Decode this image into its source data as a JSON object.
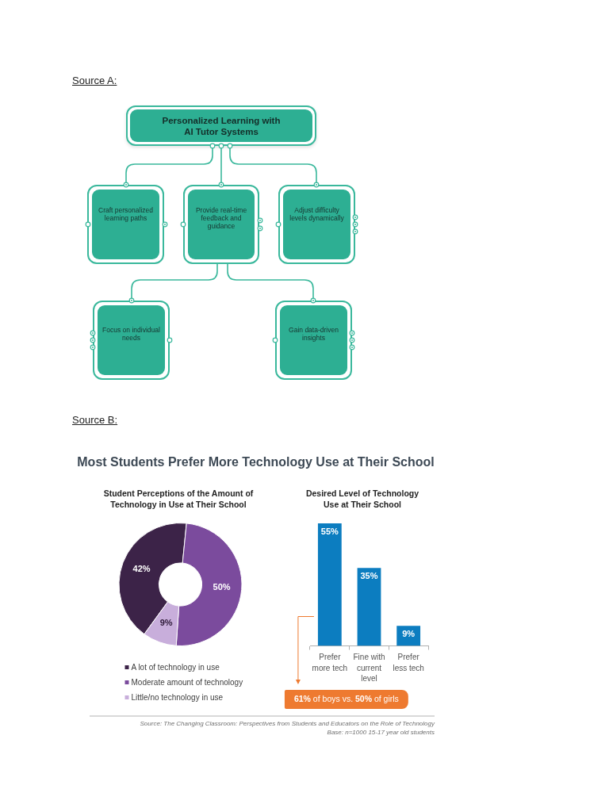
{
  "chart_data": [
    {
      "type": "other",
      "title": "Personalized Learning with AI Tutor Systems",
      "annotations": [
        "Source A:",
        "Craft personalized learning paths",
        "Provide real-time feedback and guidance",
        "Adjust difficulty levels dynamically",
        "Focus on individual needs",
        "Gain data-driven insights"
      ]
    },
    {
      "type": "other",
      "title": "Most Students Prefer More Technology Use at Their School",
      "annotations": [
        "Source B:",
        "Source: The Changing Classroom: Perspectives from Students and Educators on the Role of Technology",
        "Base: n=1000 15-17 year old students"
      ]
    },
    {
      "type": "donut",
      "title": "Student Perceptions of the Amount of Technology in Use at Their School",
      "categories": [
        "A lot of technology in use",
        "Moderate amount of technology",
        "Little/no technology in use"
      ],
      "values": [
        42,
        50,
        9
      ],
      "colors": [
        "#3c2348",
        "#7b4b9d",
        "#c8aedb"
      ],
      "value_labels": [
        "42%",
        "50%",
        "9%"
      ],
      "legend": "bottom"
    },
    {
      "type": "bar",
      "title": "Desired Level of Technology Use at Their School",
      "categories": [
        "Prefer more tech",
        "Fine with current level",
        "Prefer less tech"
      ],
      "values": [
        55,
        35,
        9
      ],
      "color": "#0c7dc0",
      "value_labels": [
        "55%",
        "35%",
        "9%"
      ],
      "annotations": [
        "61% of boys vs. 50% of girls"
      ]
    }
  ]
}
